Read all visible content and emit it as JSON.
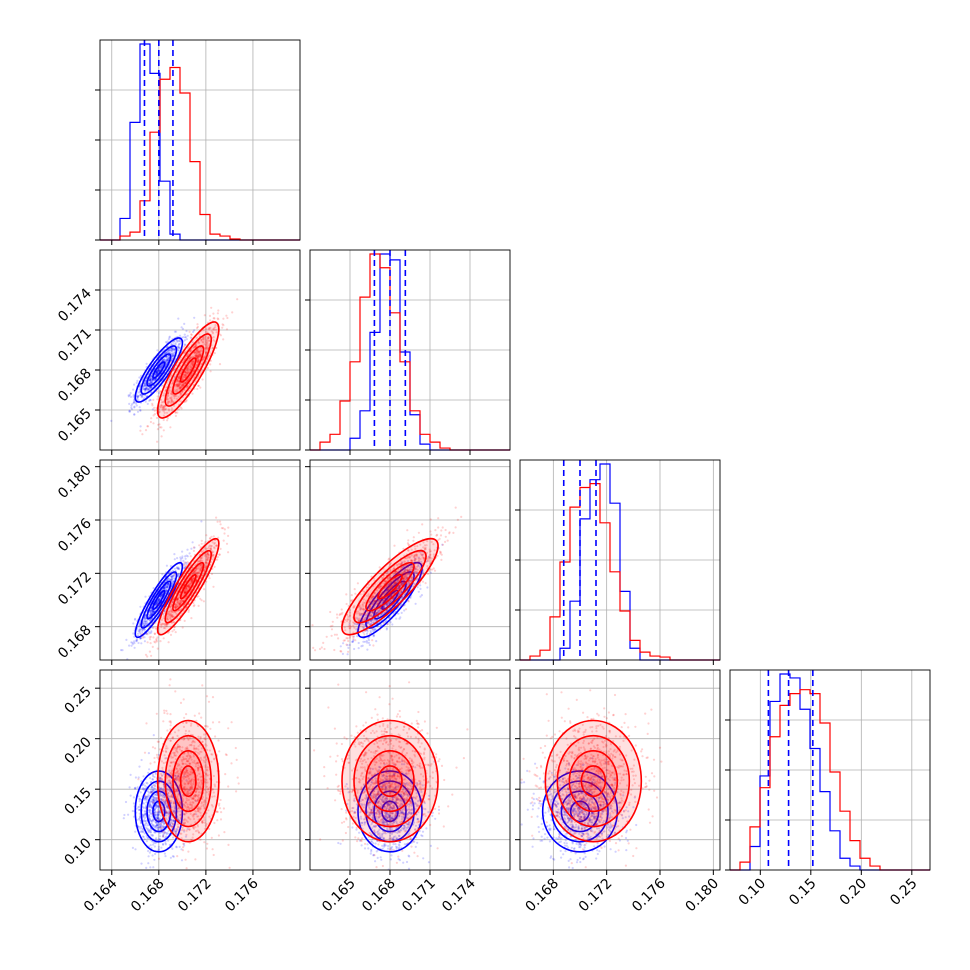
{
  "colors": {
    "series_a": "#0000ff",
    "series_b": "#ff0000",
    "grid": "#b0b0b0",
    "frame": "#000000"
  },
  "chart_data": {
    "type": "corner",
    "grid": true,
    "parameters": [
      {
        "range": [
          0.163,
          0.18
        ],
        "ticks": [
          "0.164",
          "0.168",
          "0.172",
          "0.176"
        ],
        "tick_values": [
          0.164,
          0.168,
          0.172,
          0.176
        ]
      },
      {
        "range": [
          0.162,
          0.177
        ],
        "ticks": [
          "0.165",
          "0.168",
          "0.171",
          "0.174"
        ],
        "tick_values": [
          0.165,
          0.168,
          0.171,
          0.174
        ]
      },
      {
        "range": [
          0.1655,
          0.1805
        ],
        "ticks": [
          "0.168",
          "0.172",
          "0.176",
          "0.180"
        ],
        "tick_values": [
          0.168,
          0.172,
          0.176,
          0.18
        ]
      },
      {
        "range": [
          0.07,
          0.268
        ],
        "ticks": [
          "0.10",
          "0.15",
          "0.20",
          "0.25"
        ],
        "tick_values": [
          0.1,
          0.15,
          0.2,
          0.25
        ]
      }
    ],
    "series": [
      {
        "color": "#0000ff",
        "mean": [
          0.168,
          0.168,
          0.17,
          0.128
        ],
        "std": [
          0.001,
          0.0012,
          0.0014,
          0.02
        ],
        "quantiles": [
          [
            0.16678,
            0.168,
            0.1692
          ],
          [
            0.16683,
            0.168,
            0.16915
          ],
          [
            0.16878,
            0.17,
            0.1712
          ],
          [
            0.108,
            0.128,
            0.152
          ]
        ],
        "histograms": [
          [
            0,
            0,
            0.11,
            0.6,
            1.0,
            0.85,
            0.3,
            0.03,
            0,
            0,
            0,
            0,
            0,
            0,
            0,
            0,
            0,
            0,
            0,
            0
          ],
          [
            0,
            0,
            0,
            0,
            0.06,
            0.2,
            0.6,
            1.0,
            0.97,
            0.5,
            0.18,
            0.03,
            0,
            0,
            0,
            0,
            0,
            0,
            0,
            0
          ],
          [
            0,
            0,
            0,
            0,
            0.06,
            0.3,
            0.72,
            0.92,
            1.0,
            0.8,
            0.35,
            0.06,
            0,
            0,
            0,
            0,
            0,
            0,
            0,
            0
          ],
          [
            0,
            0,
            0.12,
            0.48,
            0.86,
            1.0,
            0.98,
            0.82,
            0.62,
            0.4,
            0.2,
            0.06,
            0.02,
            0,
            0,
            0,
            0,
            0,
            0,
            0
          ]
        ]
      },
      {
        "color": "#ff0000",
        "mean": [
          0.1705,
          0.168,
          0.171,
          0.158
        ],
        "std": [
          0.0013,
          0.0018,
          0.0018,
          0.03
        ],
        "histograms": [
          [
            0,
            0,
            0.02,
            0.04,
            0.2,
            0.55,
            0.82,
            0.88,
            0.75,
            0.4,
            0.13,
            0.03,
            0.02,
            0.005,
            0,
            0,
            0,
            0,
            0,
            0
          ],
          [
            0,
            0.04,
            0.08,
            0.25,
            0.45,
            0.78,
            1.0,
            0.93,
            0.7,
            0.45,
            0.2,
            0.08,
            0.04,
            0.01,
            0,
            0,
            0,
            0,
            0,
            0
          ],
          [
            0,
            0.02,
            0.05,
            0.22,
            0.5,
            0.78,
            0.88,
            0.9,
            0.7,
            0.45,
            0.25,
            0.1,
            0.04,
            0.02,
            0.015,
            0,
            0,
            0,
            0,
            0
          ],
          [
            0,
            0.04,
            0.22,
            0.42,
            0.68,
            0.84,
            0.9,
            0.92,
            0.9,
            0.75,
            0.5,
            0.3,
            0.15,
            0.06,
            0.02,
            0,
            0,
            0,
            0,
            0
          ]
        ]
      }
    ],
    "correlations": [
      {
        "pair": [
          1,
          0
        ],
        "series_a": 0.85,
        "series_b": 0.85
      },
      {
        "pair": [
          2,
          0
        ],
        "series_a": 0.9,
        "series_b": 0.9
      },
      {
        "pair": [
          2,
          1
        ],
        "series_a": 0.85,
        "series_b": 0.85
      },
      {
        "pair": [
          3,
          0
        ],
        "series_a": 0.0,
        "series_b": 0.0
      },
      {
        "pair": [
          3,
          1
        ],
        "series_a": 0.0,
        "series_b": 0.0
      },
      {
        "pair": [
          3,
          2
        ],
        "series_a": 0.0,
        "series_b": 0.0
      }
    ]
  }
}
